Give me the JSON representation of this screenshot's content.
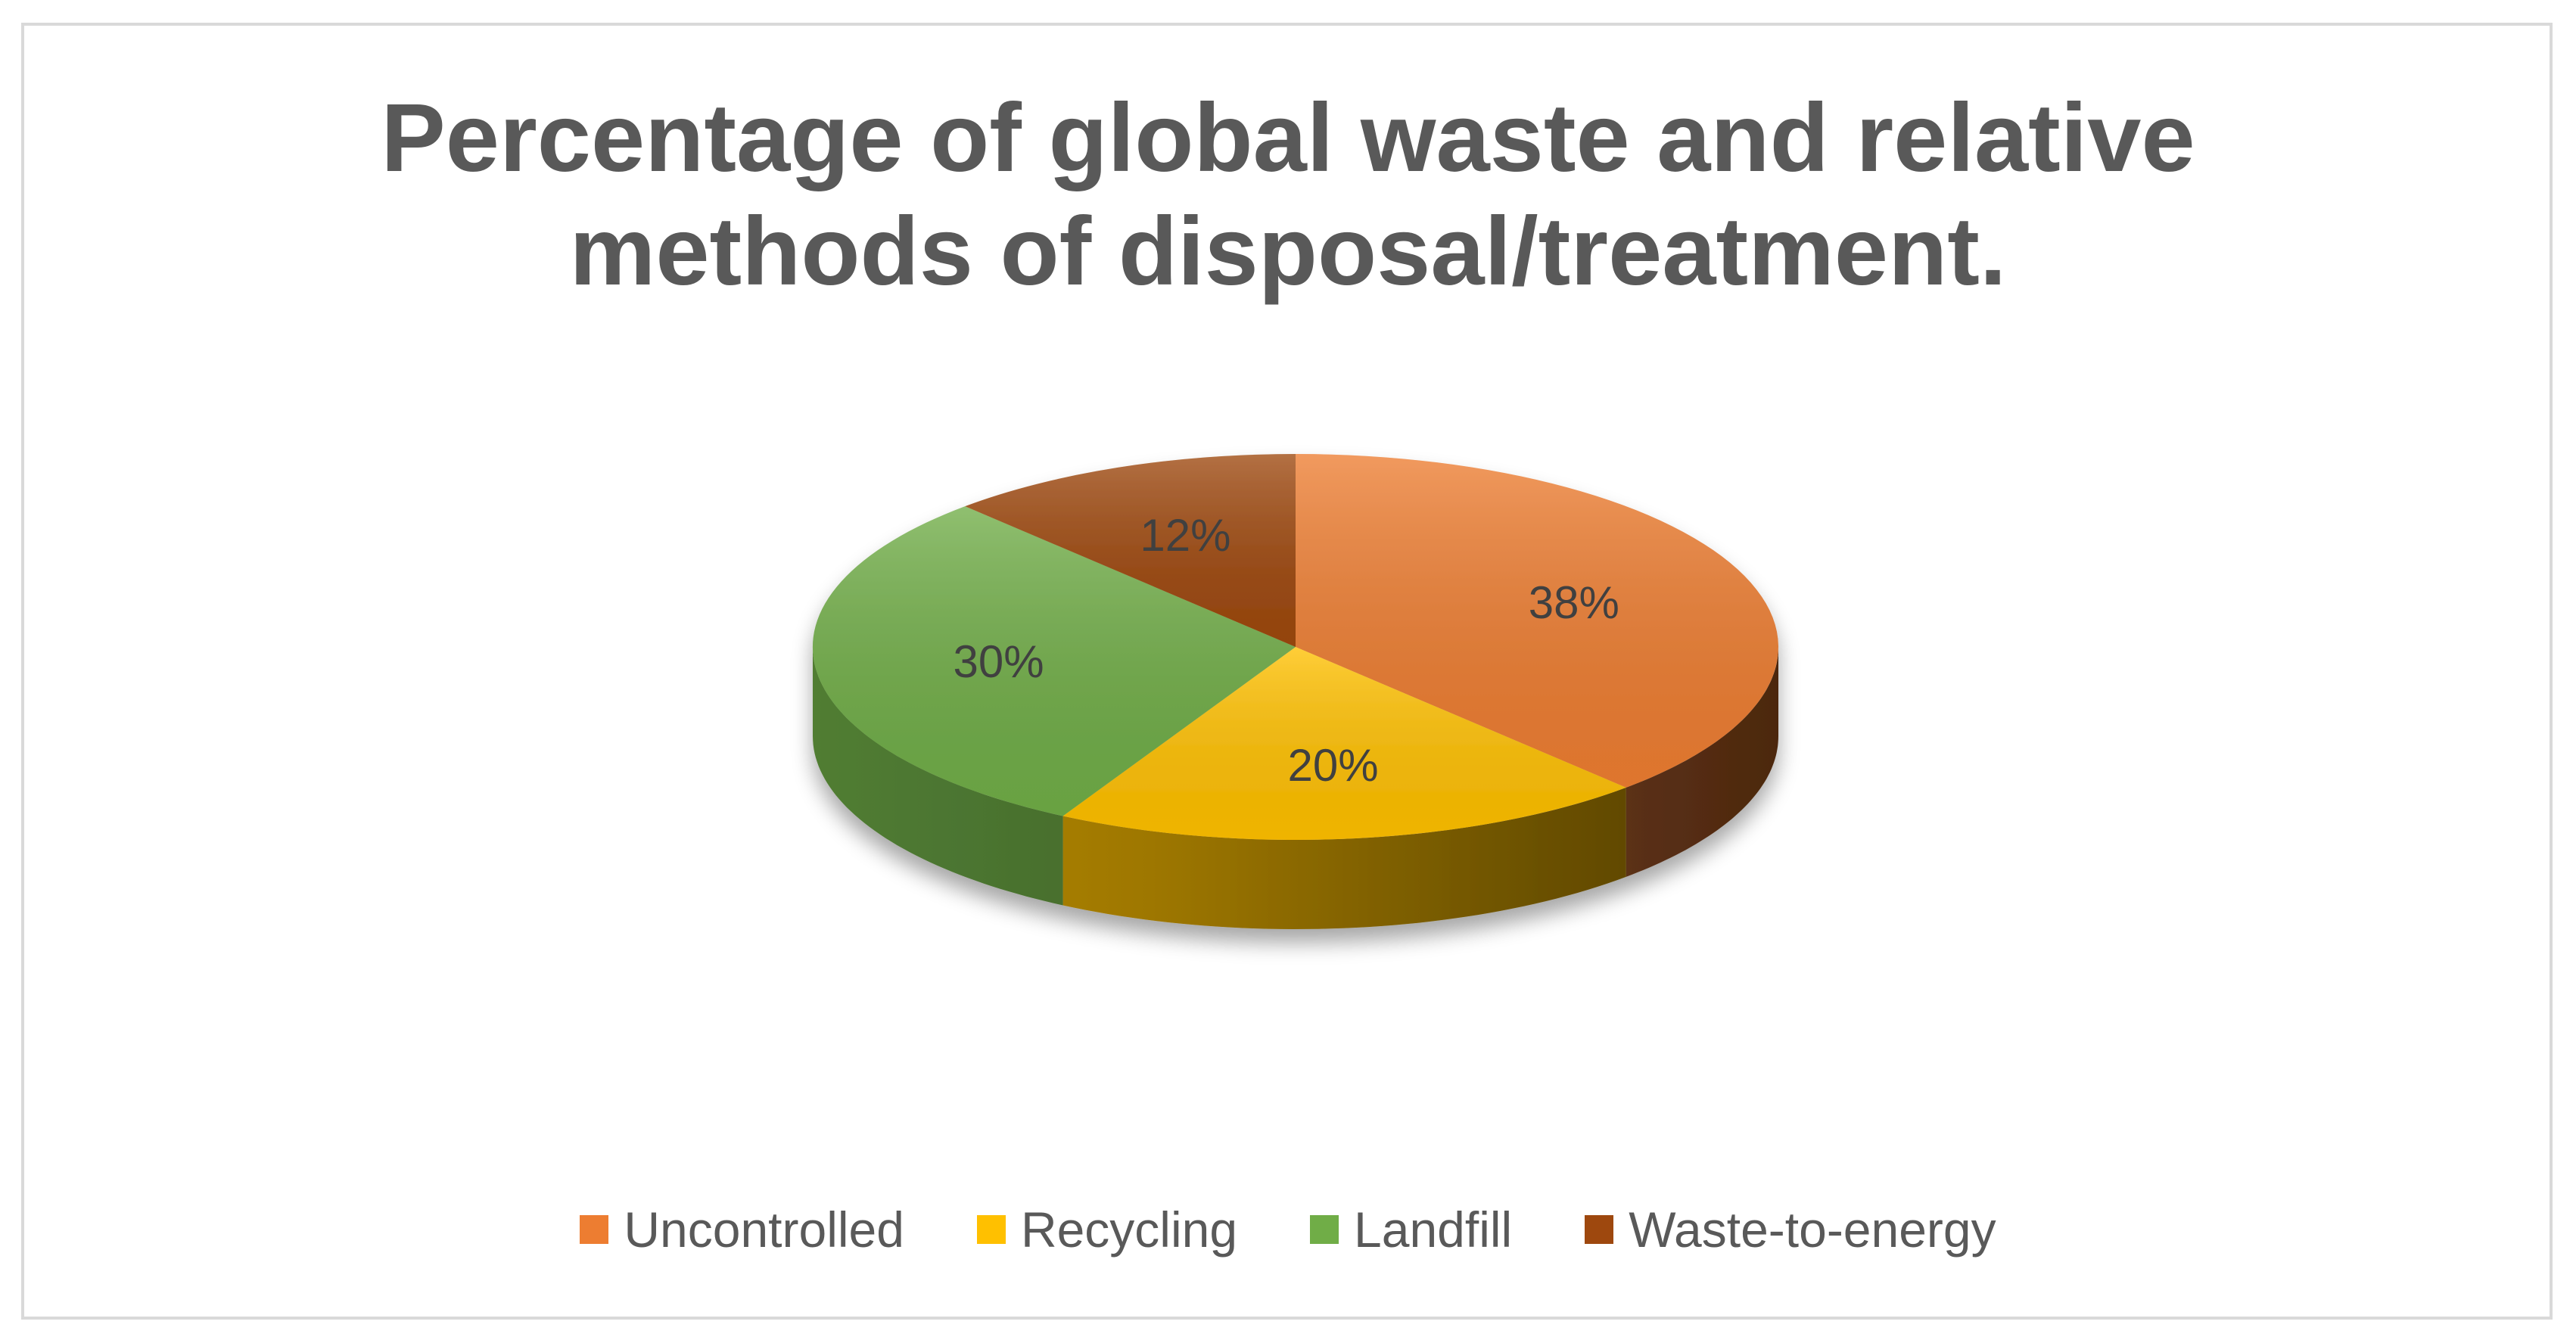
{
  "chart_data": {
    "type": "pie",
    "title": "Percentage of global waste and relative methods of disposal/treatment.",
    "title_lines": [
      "Percentage of global waste and relative",
      "methods of disposal/treatment."
    ],
    "categories": [
      "Uncontrolled",
      "Recycling",
      "Landfill",
      "Waste-to-energy"
    ],
    "values": [
      38,
      20,
      30,
      12
    ],
    "data_labels": [
      "38%",
      "20%",
      "30%",
      "12%"
    ],
    "colors": [
      "#ED7D31",
      "#FFC000",
      "#70AD47",
      "#9E480E"
    ],
    "style": "3d",
    "legend_position": "bottom"
  }
}
